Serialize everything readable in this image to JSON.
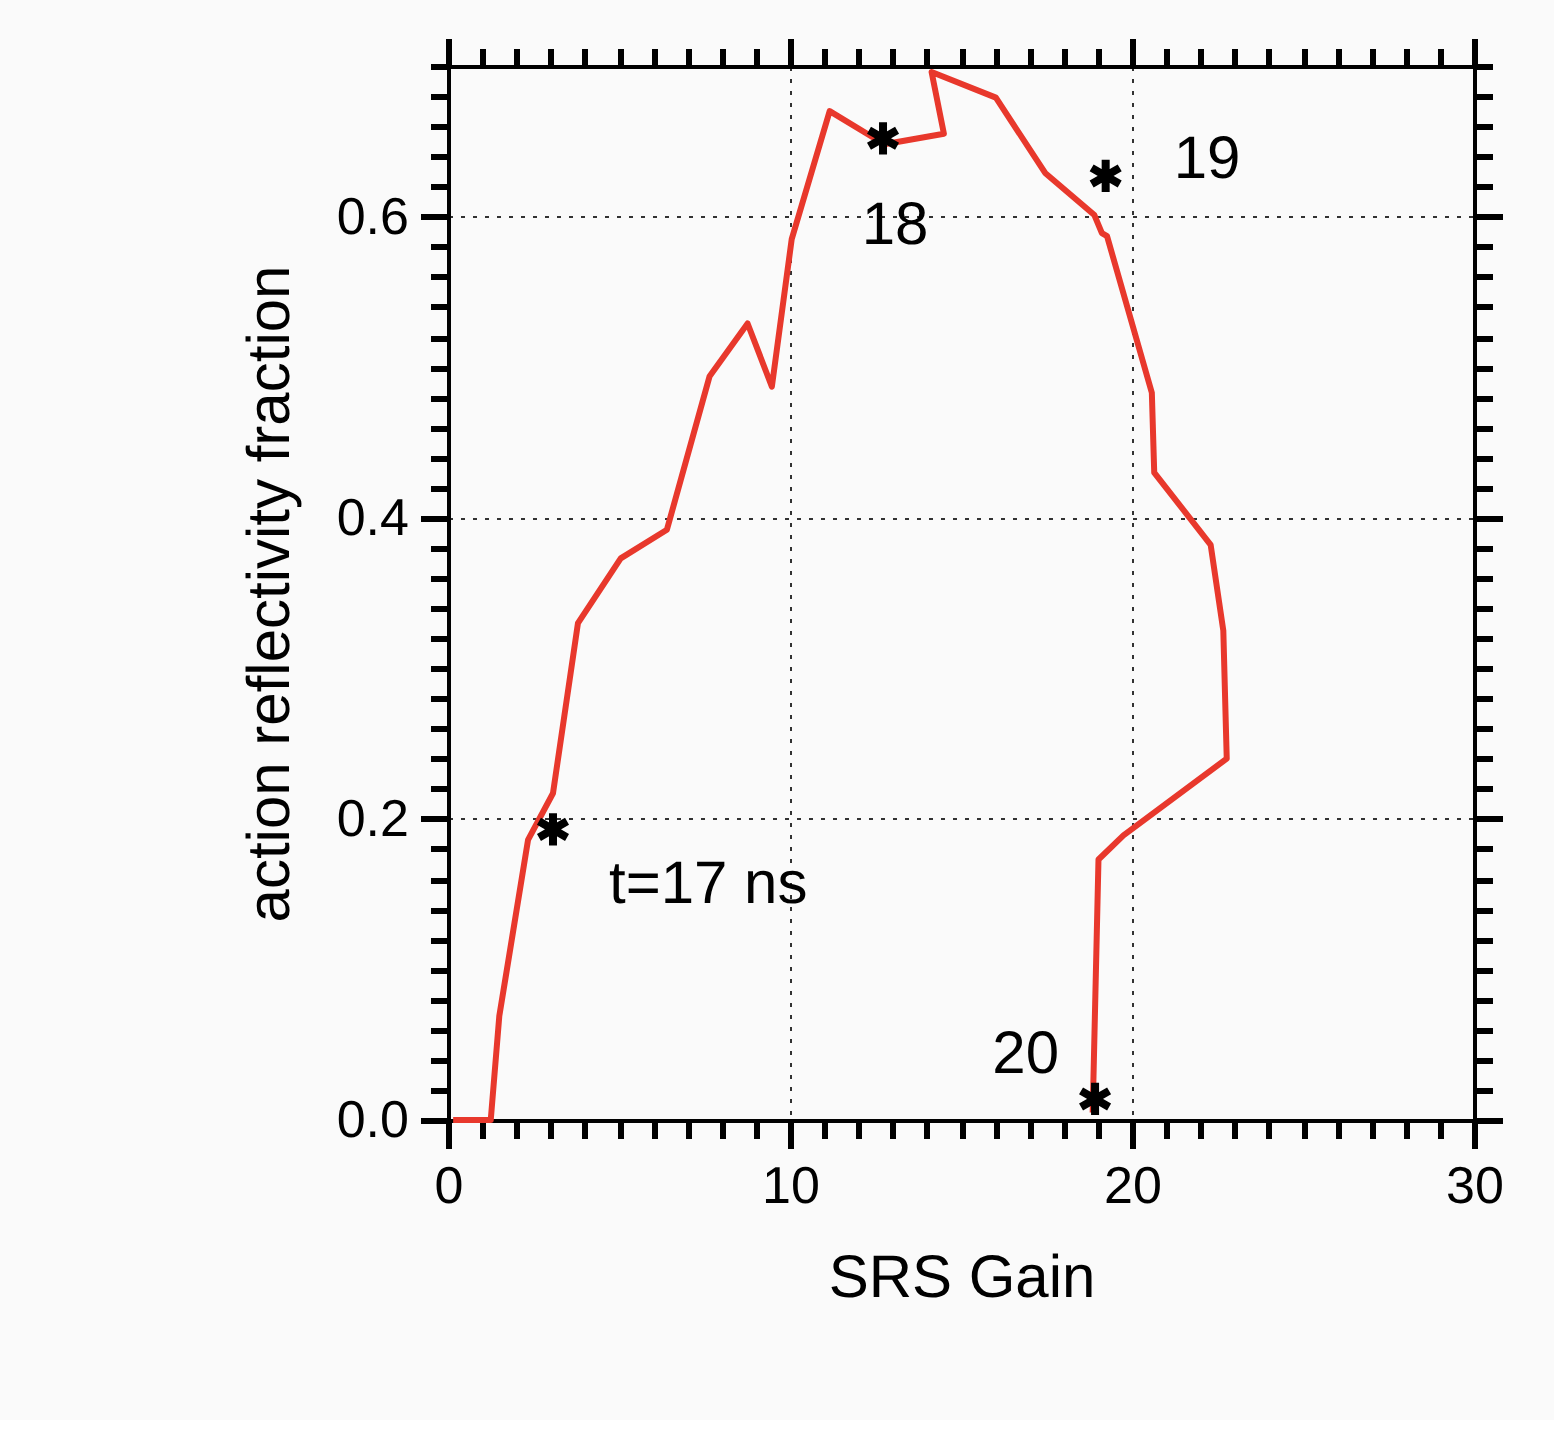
{
  "chart_data": {
    "type": "line",
    "xlabel": "SRS Gain",
    "ylabel": "action reflectivity fraction",
    "xlim": [
      0,
      30
    ],
    "ylim": [
      0,
      0.7
    ],
    "xticks": [
      0,
      {
        "value": 1,
        "label": null
      },
      {
        "value": 2,
        "label": null
      },
      {
        "value": 3,
        "label": null
      },
      {
        "value": 4,
        "label": null
      },
      {
        "value": 5,
        "label": null
      },
      {
        "value": 6,
        "label": null
      },
      {
        "value": 7,
        "label": null
      },
      {
        "value": 8,
        "label": null
      },
      {
        "value": 9,
        "label": null
      },
      10,
      {
        "value": 11,
        "label": null
      },
      {
        "value": 12,
        "label": null
      },
      {
        "value": 13,
        "label": null
      },
      {
        "value": 14,
        "label": null
      },
      {
        "value": 15,
        "label": null
      },
      {
        "value": 16,
        "label": null
      },
      {
        "value": 17,
        "label": null
      },
      {
        "value": 18,
        "label": null
      },
      {
        "value": 19,
        "label": null
      },
      20,
      {
        "value": 21,
        "label": null
      },
      {
        "value": 22,
        "label": null
      },
      {
        "value": 23,
        "label": null
      },
      {
        "value": 24,
        "label": null
      },
      {
        "value": 25,
        "label": null
      },
      {
        "value": 26,
        "label": null
      },
      {
        "value": 27,
        "label": null
      },
      {
        "value": 28,
        "label": null
      },
      {
        "value": 29,
        "label": null
      },
      30
    ],
    "yticks": [
      {
        "value": 0,
        "label": "0.0"
      },
      {
        "value": 0.02,
        "label": null
      },
      {
        "value": 0.04,
        "label": null
      },
      {
        "value": 0.06,
        "label": null
      },
      {
        "value": 0.08,
        "label": null
      },
      {
        "value": 0.1,
        "label": null
      },
      {
        "value": 0.12,
        "label": null
      },
      {
        "value": 0.14,
        "label": null
      },
      {
        "value": 0.16,
        "label": null
      },
      {
        "value": 0.18,
        "label": null
      },
      0.2,
      {
        "value": 0.22,
        "label": null
      },
      {
        "value": 0.24,
        "label": null
      },
      {
        "value": 0.26,
        "label": null
      },
      {
        "value": 0.28,
        "label": null
      },
      {
        "value": 0.3,
        "label": null
      },
      {
        "value": 0.32,
        "label": null
      },
      {
        "value": 0.34,
        "label": null
      },
      {
        "value": 0.36,
        "label": null
      },
      {
        "value": 0.38,
        "label": null
      },
      0.4,
      {
        "value": 0.42,
        "label": null
      },
      {
        "value": 0.44,
        "label": null
      },
      {
        "value": 0.46,
        "label": null
      },
      {
        "value": 0.48,
        "label": null
      },
      {
        "value": 0.5,
        "label": null
      },
      {
        "value": 0.52,
        "label": null
      },
      {
        "value": 0.54,
        "label": null
      },
      {
        "value": 0.56,
        "label": null
      },
      {
        "value": 0.58,
        "label": null
      },
      0.6,
      {
        "value": 0.62,
        "label": null
      },
      {
        "value": 0.64,
        "label": null
      },
      {
        "value": 0.66,
        "label": null
      },
      {
        "value": 0.68,
        "label": null
      },
      {
        "value": 0.7,
        "label": null
      }
    ],
    "grid": true,
    "series": [
      {
        "color": "#e8382c",
        "marker": "none",
        "line_style": "solid",
        "x": [
          0.15,
          1.25,
          1.5,
          2.34,
          3.07,
          3.8,
          5.05,
          6.4,
          7.65,
          8.76,
          9.47,
          10.05,
          11.16,
          12.76,
          14.5,
          14.14,
          16.02,
          17.46,
          18.9,
          19.12,
          19.27,
          20.58,
          20.65,
          22.3,
          22.67,
          22.77,
          19.75,
          19.02,
          18.85
        ],
        "values": [
          0.0,
          0.0,
          0.069,
          0.186,
          0.217,
          0.33,
          0.373,
          0.392,
          0.494,
          0.529,
          0.487,
          0.585,
          0.67,
          0.648,
          0.655,
          0.696,
          0.679,
          0.629,
          0.601,
          0.589,
          0.587,
          0.483,
          0.43,
          0.382,
          0.325,
          0.24,
          0.189,
          0.173,
          0.005
        ]
      },
      {
        "type": "scatter",
        "color": "#000000",
        "marker": "cross",
        "x": [
          3.07,
          12.72,
          19.23,
          18.92
        ],
        "values": [
          0.193,
          0.652,
          0.627,
          0.014
        ]
      }
    ],
    "annotations": [
      {
        "text": "t=17 ns",
        "x": 3.07,
        "y": 0.193
      },
      {
        "text": "18",
        "x": 12.72,
        "y": 0.652
      },
      {
        "text": "19",
        "x": 19.23,
        "y": 0.627
      },
      {
        "text": "20",
        "x": 18.92,
        "y": 0.014
      }
    ]
  }
}
